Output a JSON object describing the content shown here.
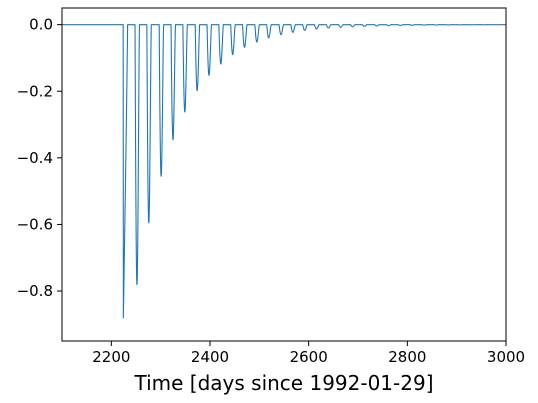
{
  "chart_data": {
    "type": "line",
    "title": "",
    "xlabel": "Time [days since 1992-01-29]",
    "ylabel": "",
    "xlim": [
      2100,
      3000
    ],
    "ylim": [
      -0.95,
      0.05
    ],
    "x_ticks": [
      2200,
      2400,
      2600,
      2800,
      3000
    ],
    "x_tick_labels": [
      "2200",
      "2400",
      "2600",
      "2800",
      "3000"
    ],
    "y_ticks": [
      0.0,
      -0.2,
      -0.4,
      -0.6,
      -0.8
    ],
    "y_tick_labels": [
      "0.0",
      "−0.2",
      "−0.4",
      "−0.6",
      "−0.8"
    ],
    "grid": false,
    "legend": "none",
    "series": [
      {
        "color": "#1f77b4",
        "baseline": 0.0,
        "pulse_start_x": [
          2224,
          2248,
          2272,
          2297,
          2321,
          2345,
          2370,
          2394,
          2418,
          2442,
          2466,
          2491,
          2515,
          2540,
          2564,
          2588,
          2612,
          2636,
          2661,
          2685,
          2709,
          2734,
          2758,
          2782,
          2806,
          2830,
          2855,
          2879,
          2903,
          2927,
          2952,
          2976
        ],
        "pulse_min_y": [
          -0.915,
          -0.78,
          -0.595,
          -0.455,
          -0.345,
          -0.262,
          -0.198,
          -0.152,
          -0.118,
          -0.09,
          -0.068,
          -0.052,
          -0.04,
          -0.03,
          -0.023,
          -0.017,
          -0.013,
          -0.01,
          -0.008,
          -0.006,
          -0.005,
          -0.004,
          -0.003,
          -0.0025,
          -0.002,
          -0.0015,
          -0.0012,
          -0.001,
          -0.0008,
          -0.0006,
          -0.0005,
          -0.0004
        ],
        "pulse_width_days": 9
      }
    ]
  }
}
